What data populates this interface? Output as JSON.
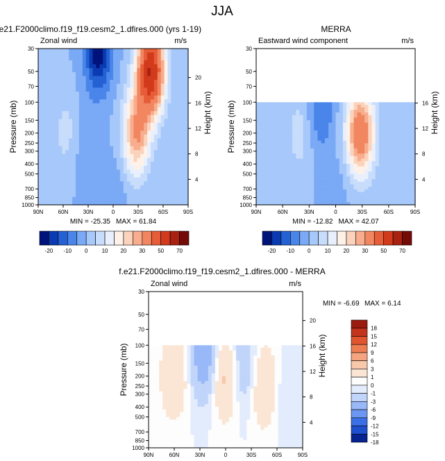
{
  "page_title": "JJA",
  "colors": {
    "panel_scale": [
      "#00137b",
      "#0a3bb2",
      "#2461d2",
      "#4a85ea",
      "#7aa9f5",
      "#a6c8fa",
      "#c8dcfb",
      "#e9f0fd",
      "#fdf1e8",
      "#fbd3bc",
      "#f7ad8e",
      "#f18660",
      "#e65d38",
      "#d23a1c",
      "#a92111",
      "#740b07"
    ],
    "diff_scale": [
      "#06238f",
      "#1d4fce",
      "#3b6fe5",
      "#6b97f2",
      "#98b8f8",
      "#c1d4fa",
      "#e3ecfc",
      "#fdfdfd",
      "#fbe6d6",
      "#f8c8ab",
      "#f4a47f",
      "#ee7d52",
      "#e0552f",
      "#c2341b",
      "#9b1c0f"
    ]
  },
  "chart_data": [
    {
      "type": "heatmap",
      "title": "f.e21.F2000climo.f19_f19.cesm2_1.dfires.000 (yrs 1-19)",
      "left_string": "Zonal wind",
      "right_string": "m/s",
      "xlabel": "",
      "ylabel": "Pressure (mb)",
      "ylabel_right": "Height (km)",
      "x_ticks": [
        "90N",
        "60N",
        "30N",
        "0",
        "30S",
        "60S",
        "90S"
      ],
      "y_ticks": [
        "30",
        "50",
        "70",
        "100",
        "150",
        "200",
        "250",
        "300",
        "400",
        "500",
        "700",
        "850",
        "1000"
      ],
      "y_ticks_right": [
        "20",
        "16",
        "12",
        "8",
        "4"
      ],
      "min_label": "MIN = -25.35",
      "max_label": "MAX = 61.84",
      "min": -25.35,
      "max": 61.84,
      "data_top_pressure": 30,
      "colorbar_labels": [
        "-20",
        "-10",
        "0",
        "10",
        "20",
        "30",
        "50",
        "70"
      ],
      "colorbar_levels": [
        -25,
        -20,
        -15,
        -10,
        -5,
        0,
        5,
        10,
        15,
        20,
        25,
        30,
        40,
        50,
        60,
        70
      ],
      "features": [
        {
          "lat": 18,
          "p": 30,
          "value": -24
        },
        {
          "lat": 40,
          "p": 250,
          "value": -4
        },
        {
          "lat": 55,
          "p": 200,
          "value": 8
        },
        {
          "lat": -28,
          "p": 200,
          "value": 30
        },
        {
          "lat": -45,
          "p": 50,
          "value": 60
        },
        {
          "lat": 0,
          "p": 900,
          "value": -4
        }
      ]
    },
    {
      "type": "heatmap",
      "title": "MERRA",
      "left_string": "Eastward wind component",
      "right_string": "m/s",
      "xlabel": "",
      "ylabel": "Pressure (mb)",
      "ylabel_right": "Height (km)",
      "x_ticks": [
        "90N",
        "60N",
        "30N",
        "0",
        "30S",
        "60S",
        "90S"
      ],
      "y_ticks": [
        "30",
        "50",
        "70",
        "100",
        "150",
        "200",
        "250",
        "300",
        "400",
        "500",
        "700",
        "850",
        "1000"
      ],
      "y_ticks_right": [
        "16",
        "12",
        "8",
        "4"
      ],
      "min_label": "MIN = -12.82",
      "max_label": "MAX = 42.07",
      "min": -12.82,
      "max": 42.07,
      "data_top_pressure": 100,
      "colorbar_labels": [
        "-20",
        "-10",
        "0",
        "10",
        "20",
        "30",
        "50",
        "70"
      ],
      "colorbar_levels": [
        -25,
        -20,
        -15,
        -10,
        -5,
        0,
        5,
        10,
        15,
        20,
        25,
        30,
        40,
        50,
        60,
        70
      ],
      "features": [
        {
          "lat": 40,
          "p": 200,
          "value": 8
        },
        {
          "lat": -28,
          "p": 200,
          "value": 38
        },
        {
          "lat": 18,
          "p": 120,
          "value": -10
        },
        {
          "lat": 0,
          "p": 800,
          "value": -3
        }
      ]
    },
    {
      "type": "heatmap",
      "title": "f.e21.F2000climo.f19_f19.cesm2_1.dfires.000 - MERRA",
      "left_string": "Zonal wind",
      "right_string": "m/s",
      "xlabel": "",
      "ylabel": "Pressure (mb)",
      "ylabel_right": "Height (km)",
      "x_ticks": [
        "90N",
        "60N",
        "30N",
        "0",
        "30S",
        "60S",
        "90S"
      ],
      "y_ticks": [
        "30",
        "50",
        "70",
        "100",
        "150",
        "200",
        "250",
        "300",
        "400",
        "500",
        "700",
        "850",
        "1000"
      ],
      "y_ticks_right": [
        "20",
        "16",
        "12",
        "8",
        "4"
      ],
      "min_label": "MIN = -6.69",
      "max_label": "MAX = 6.14",
      "min": -6.69,
      "max": 6.14,
      "data_top_pressure": 100,
      "colorbar_labels": [
        "18",
        "15",
        "12",
        "9",
        "6",
        "3",
        "1",
        "0",
        "-1",
        "-3",
        "-6",
        "-9",
        "-12",
        "-15",
        "-18"
      ],
      "colorbar_levels": [
        -18,
        -15,
        -12,
        -9,
        -6,
        -3,
        -1,
        0,
        1,
        3,
        6,
        9,
        12,
        15,
        18
      ],
      "features": [
        {
          "lat": 60,
          "p": 200,
          "value": 3
        },
        {
          "lat": 25,
          "p": 130,
          "value": -5
        },
        {
          "lat": 0,
          "p": 200,
          "value": 4
        },
        {
          "lat": -20,
          "p": 160,
          "value": -3
        },
        {
          "lat": -45,
          "p": 250,
          "value": 3
        },
        {
          "lat": -70,
          "p": 300,
          "value": -1
        }
      ]
    }
  ]
}
